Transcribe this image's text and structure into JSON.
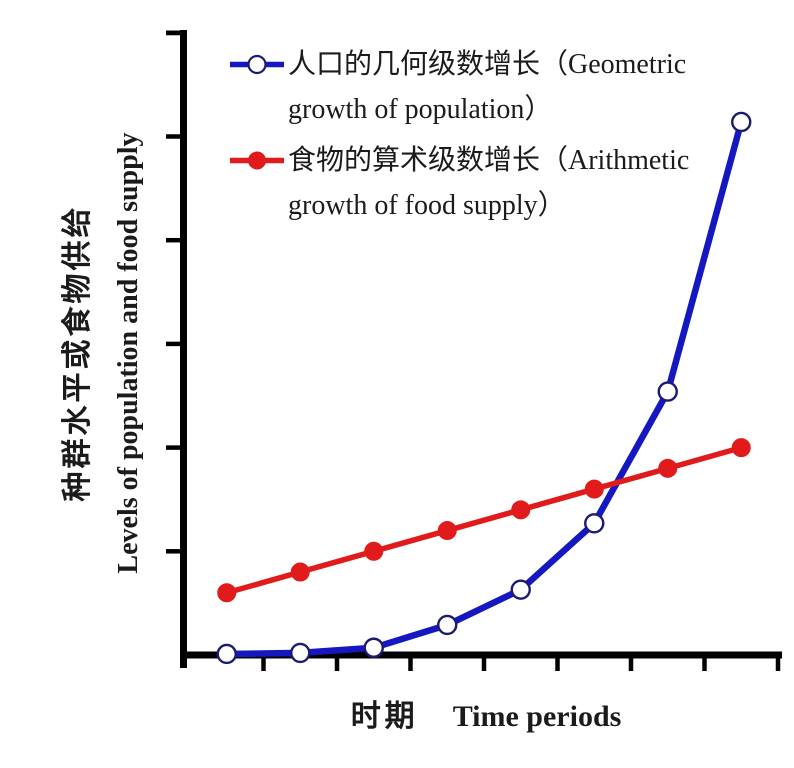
{
  "figure": {
    "background": "#ffffff"
  },
  "colors": {
    "geometric_blue": "#1517c0",
    "geometric_marker_outline": "#1b1b70",
    "arithmetic_red": "#e11a1c",
    "axis_black": "#000000",
    "text": "#1b1b1b"
  },
  "legend": {
    "geometric": {
      "line1": "人口的几何级数增长（Geometric",
      "line2": "growth of population）"
    },
    "arithmetic": {
      "line1": "食物的算术级数增长（Arithmetic",
      "line2": "growth of food supply）"
    }
  },
  "axes": {
    "ylabel_cn": "种群水平或食物供给",
    "ylabel_en": "Levels of population and food supply",
    "xlabel_cn": "时期",
    "xlabel_en": "Time periods"
  },
  "chart_data": {
    "type": "line",
    "title": "",
    "x": [
      1,
      2,
      3,
      4,
      5,
      6,
      7,
      8
    ],
    "series": [
      {
        "id": "geometric",
        "name": "人口的几何级数增长（Geometric growth of population）",
        "color": "#1517c0",
        "marker": "open-circle",
        "line_width": 6.5,
        "values": [
          0.01,
          0.02,
          0.07,
          0.29,
          0.63,
          1.27,
          2.54,
          5.14
        ]
      },
      {
        "id": "arithmetic",
        "name": "食物的算术级数增长（Arithmetic growth of food supply）",
        "color": "#e11a1c",
        "marker": "filled-circle",
        "line_width": 5.5,
        "values": [
          0.6,
          0.8,
          1.0,
          1.2,
          1.4,
          1.6,
          1.8,
          2.0
        ]
      }
    ],
    "xlabel": "时期 Time periods",
    "ylabel": "种群水平或食物供给 Levels of population and food supply",
    "xlim": [
      0,
      8.05
    ],
    "ylim": [
      0,
      6.2
    ],
    "x_tick_count": 8,
    "y_tick_count": 6,
    "tick_labels": "none",
    "grid": false,
    "legend_position": "inside-top-left",
    "notes": "Curves intersect between time periods 6 and 7; points plotted midway between ticks"
  }
}
